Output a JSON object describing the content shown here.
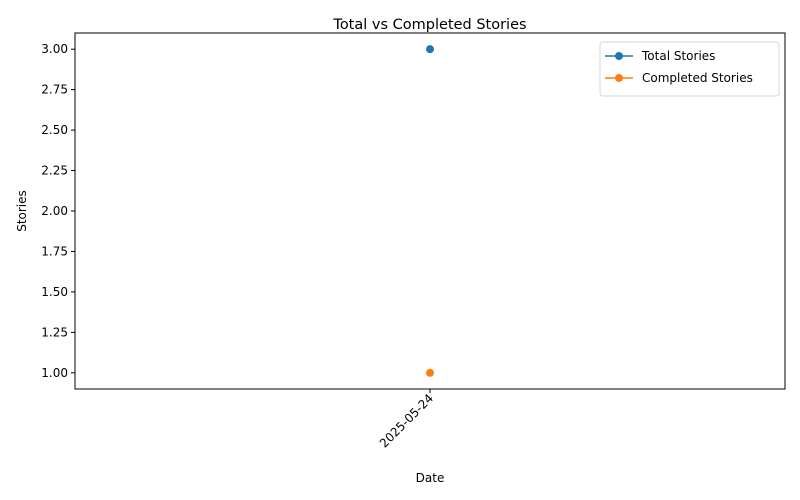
{
  "chart_data": {
    "type": "line",
    "title": "Total vs Completed Stories",
    "xlabel": "Date",
    "ylabel": "Stories",
    "x": [
      "2025-05-24"
    ],
    "y_ticks": [
      "1.00",
      "1.25",
      "1.50",
      "1.75",
      "2.00",
      "2.25",
      "2.50",
      "2.75",
      "3.00"
    ],
    "ylim": [
      0.9,
      3.1
    ],
    "grid": false,
    "legend_position": "top-right",
    "series": [
      {
        "name": "Total Stories",
        "values": [
          3
        ],
        "color": "#1f77b4"
      },
      {
        "name": "Completed Stories",
        "values": [
          1
        ],
        "color": "#ff7f0e"
      }
    ]
  }
}
